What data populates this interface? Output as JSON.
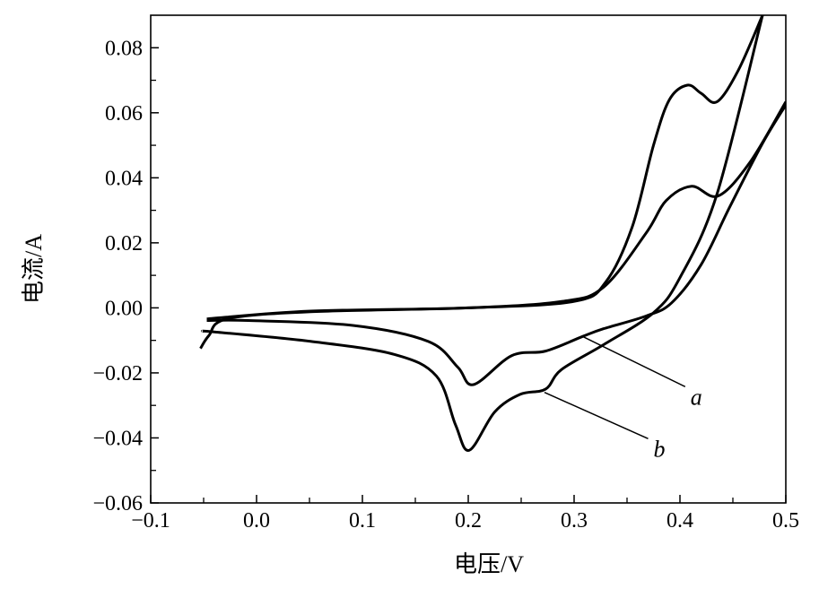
{
  "chart_data": {
    "type": "line",
    "title": "",
    "xlabel": "电压/V",
    "ylabel": "电流/A",
    "xlim": [
      -0.1,
      0.5
    ],
    "ylim": [
      -0.06,
      0.09
    ],
    "xticks": [
      -0.1,
      0.0,
      0.1,
      0.2,
      0.3,
      0.4,
      0.5
    ],
    "xtick_labels": [
      "−0.1",
      "0.0",
      "0.1",
      "0.2",
      "0.3",
      "0.4",
      "0.5"
    ],
    "yticks": [
      -0.06,
      -0.04,
      -0.02,
      0.0,
      0.02,
      0.04,
      0.06,
      0.08
    ],
    "ytick_labels": [
      "−0.06",
      "−0.04",
      "−0.02",
      "0.00",
      "0.02",
      "0.04",
      "0.06",
      "0.08"
    ],
    "grid": false,
    "series": [
      {
        "name": "a",
        "color": "#000000",
        "forward": [
          [
            -0.047,
            -0.0034
          ],
          [
            0.051,
            -0.001
          ],
          [
            0.2,
            0.0
          ],
          [
            0.289,
            0.002
          ],
          [
            0.328,
            0.0064
          ],
          [
            0.368,
            0.023
          ],
          [
            0.387,
            0.033
          ],
          [
            0.411,
            0.0374
          ],
          [
            0.436,
            0.0344
          ],
          [
            0.466,
            0.0447
          ],
          [
            0.5,
            0.0634
          ]
        ],
        "reverse": [
          [
            0.5,
            0.0624
          ],
          [
            0.478,
            0.0506
          ],
          [
            0.447,
            0.031
          ],
          [
            0.42,
            0.0133
          ],
          [
            0.392,
            0.0015
          ],
          [
            0.368,
            -0.0025
          ],
          [
            0.328,
            -0.0064
          ],
          [
            0.308,
            -0.0088
          ],
          [
            0.273,
            -0.0133
          ],
          [
            0.241,
            -0.0147
          ],
          [
            0.205,
            -0.0236
          ],
          [
            0.19,
            -0.0182
          ],
          [
            0.162,
            -0.0103
          ],
          [
            0.091,
            -0.0054
          ],
          [
            -0.008,
            -0.0039
          ],
          [
            -0.047,
            -0.0039
          ]
        ]
      },
      {
        "name": "b",
        "color": "#000000",
        "forward": [
          [
            -0.053,
            -0.0125
          ],
          [
            -0.045,
            -0.0085
          ],
          [
            -0.028,
            -0.0034
          ],
          [
            0.051,
            -0.0012
          ],
          [
            0.2,
            0.0
          ],
          [
            0.3,
            0.002
          ],
          [
            0.33,
            0.008
          ],
          [
            0.355,
            0.025
          ],
          [
            0.375,
            0.05
          ],
          [
            0.39,
            0.064
          ],
          [
            0.407,
            0.0685
          ],
          [
            0.42,
            0.066
          ],
          [
            0.435,
            0.0634
          ],
          [
            0.455,
            0.073
          ],
          [
            0.478,
            0.09
          ]
        ],
        "reverse": [
          [
            0.478,
            0.09
          ],
          [
            0.435,
            0.035
          ],
          [
            0.4,
            0.0093
          ],
          [
            0.375,
            -0.0015
          ],
          [
            0.328,
            -0.0113
          ],
          [
            0.288,
            -0.019
          ],
          [
            0.273,
            -0.025
          ],
          [
            0.249,
            -0.0266
          ],
          [
            0.225,
            -0.032
          ],
          [
            0.201,
            -0.0438
          ],
          [
            0.188,
            -0.036
          ],
          [
            0.17,
            -0.021
          ],
          [
            0.13,
            -0.0143
          ],
          [
            0.051,
            -0.0103
          ],
          [
            -0.04,
            -0.0074
          ],
          [
            -0.051,
            -0.0072
          ]
        ]
      }
    ],
    "annotations": [
      {
        "text": "a",
        "x": 0.41,
        "y": -0.027,
        "points_to": [
          0.308,
          -0.0088
        ]
      },
      {
        "text": "b",
        "x": 0.375,
        "y": -0.043,
        "points_to": [
          0.272,
          -0.026
        ]
      }
    ]
  }
}
